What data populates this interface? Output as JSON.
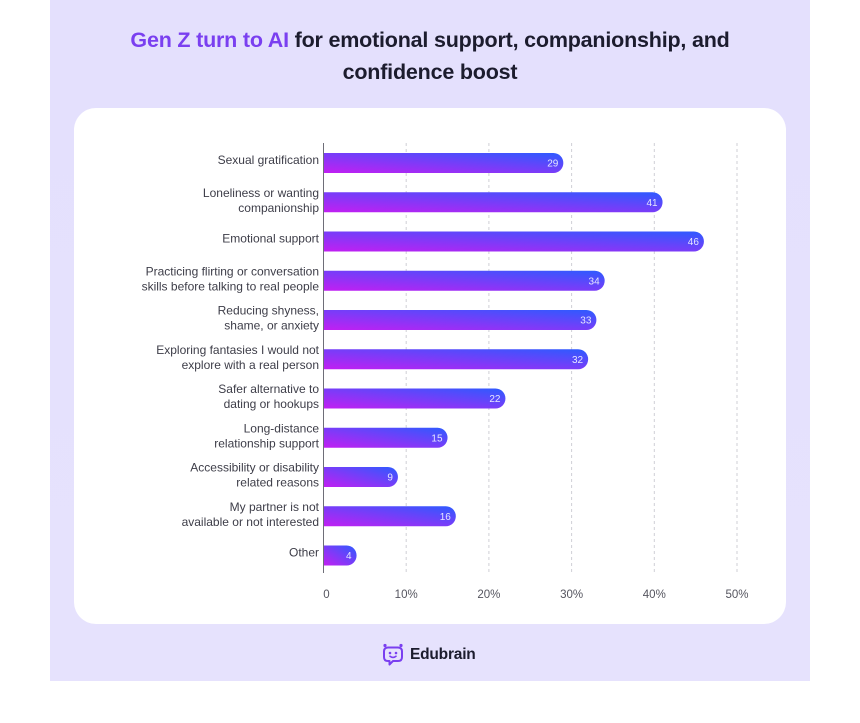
{
  "title": {
    "accent": "Gen Z turn to AI",
    "rest_line1": " for emotional support, companionship, and",
    "line2": "confidence boost"
  },
  "brand": {
    "name": "Edubrain",
    "logo_icon": "robot-face-chat-icon",
    "color": "#7a3ff0"
  },
  "colors": {
    "bar_gradient_start": "#c21ff2",
    "bar_gradient_end": "#2d5bff",
    "accent": "#7a3ff0",
    "panel_background": "#e4e0fd"
  },
  "chart_data": {
    "type": "bar",
    "orientation": "horizontal",
    "title": "Gen Z turn to AI for emotional support, companionship, and confidence boost",
    "xlabel": "",
    "ylabel": "",
    "xlim": [
      0,
      50
    ],
    "grid": true,
    "x_ticks": [
      "0",
      "10%",
      "20%",
      "30%",
      "40%",
      "50%"
    ],
    "categories": [
      [
        "Sexual gratification"
      ],
      [
        "Loneliness or wanting",
        "companionship"
      ],
      [
        "Emotional support"
      ],
      [
        "Practicing flirting or conversation",
        "skills before talking to real people"
      ],
      [
        "Reducing shyness,",
        "shame, or anxiety"
      ],
      [
        "Exploring fantasies I would not",
        "explore with a real person"
      ],
      [
        "Safer alternative to",
        "dating or hookups"
      ],
      [
        "Long-distance",
        "relationship support"
      ],
      [
        "Accessibility or disability",
        "related reasons"
      ],
      [
        "My partner is not",
        "available or not interested"
      ],
      [
        "Other"
      ]
    ],
    "values": [
      29,
      41,
      46,
      34,
      33,
      32,
      22,
      15,
      9,
      16,
      4
    ],
    "value_labels": [
      "29",
      "41",
      "46",
      "34",
      "33",
      "32",
      "22",
      "15",
      "9",
      "16",
      "4"
    ]
  }
}
